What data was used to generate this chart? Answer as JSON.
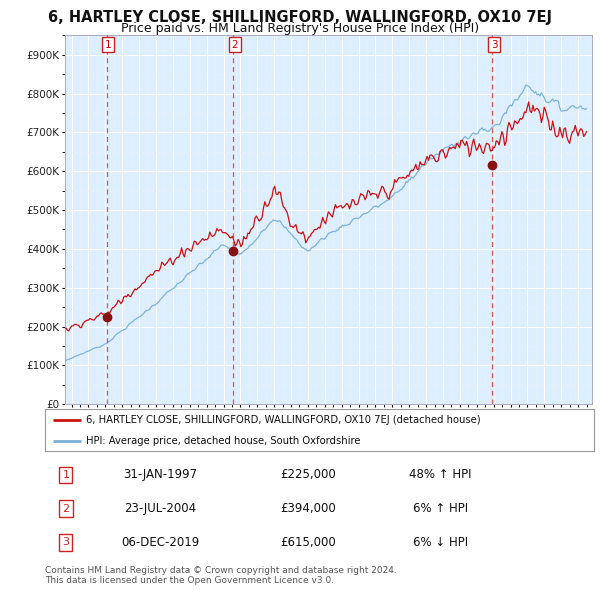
{
  "title": "6, HARTLEY CLOSE, SHILLINGFORD, WALLINGFORD, OX10 7EJ",
  "subtitle": "Price paid vs. HM Land Registry's House Price Index (HPI)",
  "ylim": [
    0,
    950000
  ],
  "yticks": [
    0,
    100000,
    200000,
    300000,
    400000,
    500000,
    600000,
    700000,
    800000,
    900000
  ],
  "ytick_labels": [
    "£0",
    "£100K",
    "£200K",
    "£300K",
    "£400K",
    "£500K",
    "£600K",
    "£700K",
    "£800K",
    "£900K"
  ],
  "bg_color": "#ddeeff",
  "grid_color": "#c8d8e8",
  "sale_dates": [
    1997.08,
    2004.56,
    2019.92
  ],
  "sale_prices": [
    225000,
    394000,
    615000
  ],
  "sale_labels": [
    "1",
    "2",
    "3"
  ],
  "hpi_color": "#7ab0d8",
  "price_color": "#cc1111",
  "legend_line1": "6, HARTLEY CLOSE, SHILLINGFORD, WALLINGFORD, OX10 7EJ (detached house)",
  "legend_line2": "HPI: Average price, detached house, South Oxfordshire",
  "table_rows": [
    [
      "1",
      "31-JAN-1997",
      "£225,000",
      "48% ↑ HPI"
    ],
    [
      "2",
      "23-JUL-2004",
      "£394,000",
      "6% ↑ HPI"
    ],
    [
      "3",
      "06-DEC-2019",
      "£615,000",
      "6% ↓ HPI"
    ]
  ],
  "footnote": "Contains HM Land Registry data © Crown copyright and database right 2024.\nThis data is licensed under the Open Government Licence v3.0.",
  "title_fontsize": 10.5,
  "subtitle_fontsize": 9,
  "tick_fontsize": 7.5,
  "xmin": 1994.6,
  "xmax": 2025.8
}
